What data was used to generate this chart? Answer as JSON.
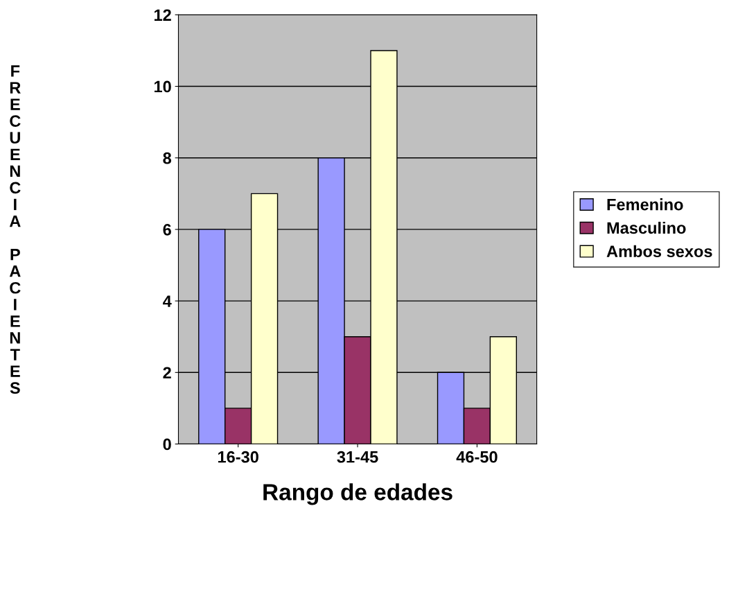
{
  "chart_data": {
    "type": "bar",
    "xlabel": "Rango de edades",
    "ylabel": "FRECUENCIA PACIENTES",
    "categories": [
      "16-30",
      "31-45",
      "46-50"
    ],
    "series": [
      {
        "name": "Femenino",
        "color": "#9999ff",
        "values": [
          6,
          8,
          2
        ]
      },
      {
        "name": "Masculino",
        "color": "#993366",
        "values": [
          1,
          3,
          1
        ]
      },
      {
        "name": "Ambos sexos",
        "color": "#ffffcc",
        "values": [
          7,
          11,
          3
        ]
      }
    ],
    "ylim": [
      0,
      12
    ],
    "yticks": [
      0,
      2,
      4,
      6,
      8,
      10,
      12
    ],
    "grid": "y",
    "legend": "right"
  }
}
